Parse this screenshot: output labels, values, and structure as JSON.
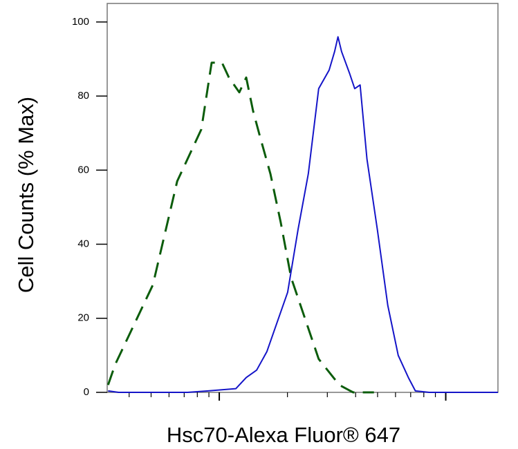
{
  "chart_data": {
    "type": "line",
    "xlabel": "Hsc70-Alexa Fluor® 647",
    "ylabel": "Cell Counts (% Max)",
    "xscale": "log",
    "xlim": [
      32,
      1700
    ],
    "xticks": [
      40,
      50,
      60,
      70,
      80,
      90,
      100,
      200,
      300,
      400,
      500,
      600,
      700,
      800,
      900,
      1000
    ],
    "ylim": [
      0,
      105
    ],
    "yticks": [
      0,
      20,
      40,
      60,
      80,
      100
    ],
    "grid": false,
    "series": [
      {
        "color": "#0b5c0b",
        "dash": true,
        "x": [
          32.3,
          34.7,
          50.9,
          65.2,
          83.3,
          92.5,
          102.8,
          110.3,
          122.6,
          131.5,
          141,
          151.4,
          168.2,
          186.6,
          207.5,
          238.8,
          274.8,
          338.8,
          390,
          481.9
        ],
        "values": [
          2,
          7.5,
          29,
          57,
          71,
          89,
          89,
          85,
          81,
          85,
          76,
          69,
          59,
          46,
          31,
          20,
          9,
          2,
          0,
          0
        ]
      },
      {
        "color": "#1414c8",
        "dash": false,
        "x": [
          32.3,
          35.9,
          72.4,
          89.3,
          118.4,
          131.5,
          146.2,
          162.3,
          180.3,
          200.4,
          222.8,
          247.2,
          274.8,
          305.5,
          323,
          334.2,
          346.7,
          376.7,
          396.3,
          418.8,
          448.7,
          498.9,
          554.6,
          616.6,
          684,
          734.5,
          845,
          1700
        ],
        "values": [
          0.4,
          0,
          0,
          0.4,
          1,
          4,
          6,
          11,
          19,
          27,
          44,
          59,
          82,
          87,
          92,
          96,
          92,
          86,
          82,
          83,
          63,
          44,
          23.5,
          10,
          4,
          0.4,
          0,
          0
        ]
      }
    ]
  }
}
